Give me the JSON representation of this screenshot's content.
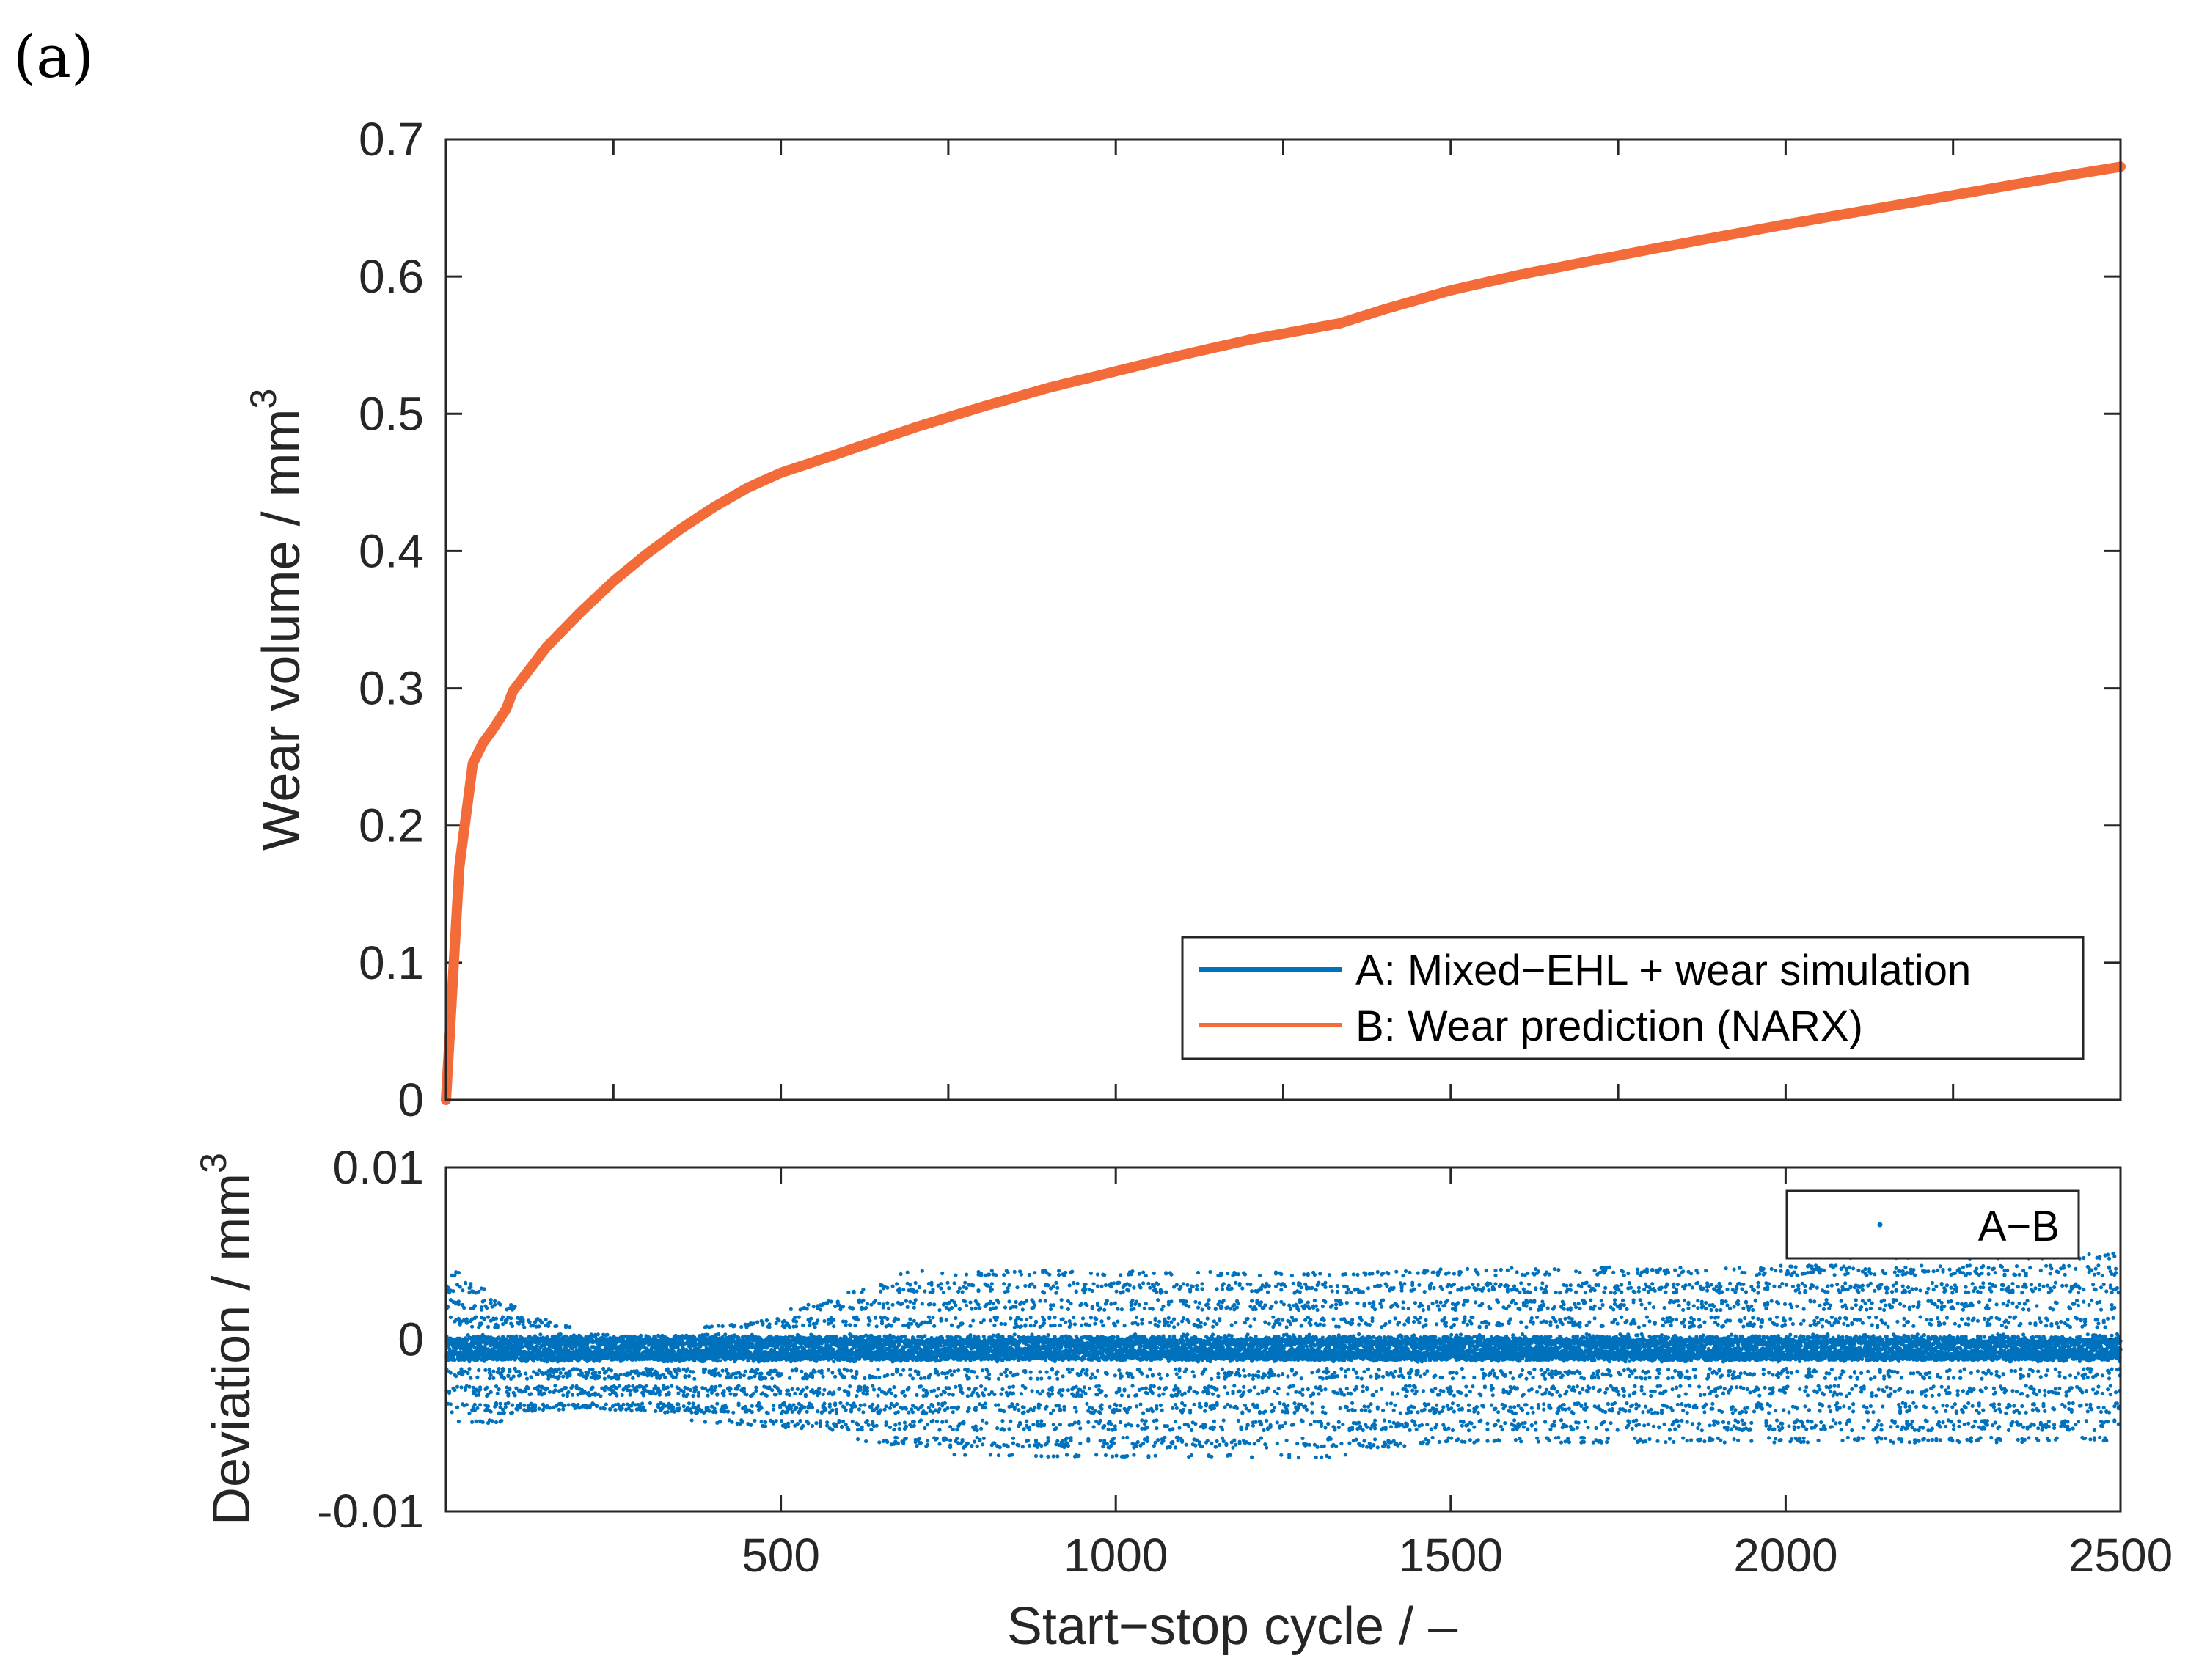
{
  "panel_label": "(a)",
  "colors": {
    "series_a": "#0072BD",
    "series_b": "#F26B38",
    "axis": "#262626"
  },
  "chart_data": [
    {
      "type": "line",
      "xlim": [
        0,
        2500
      ],
      "ylim": [
        0,
        0.7
      ],
      "yticks": [
        0,
        0.1,
        0.2,
        0.3,
        0.4,
        0.5,
        0.6,
        0.7
      ],
      "ytick_labels": [
        "0",
        "0.1",
        "0.2",
        "0.3",
        "0.4",
        "0.5",
        "0.6",
        "0.7"
      ],
      "xticks": [
        500,
        1000,
        1500,
        2000,
        2500
      ],
      "ylabel": "Wear volume / mm",
      "ylabel_superscript": "3",
      "legend": {
        "placement": "bottom-right",
        "entries": [
          "A: Mixed−EHL + wear simulation",
          "B: Wear prediction (NARX)"
        ]
      },
      "series": [
        {
          "name": "A: Mixed−EHL + wear simulation",
          "x": [
            0,
            20,
            40,
            55,
            70,
            90,
            100,
            150,
            200,
            250,
            300,
            350,
            400,
            450,
            500,
            580,
            700,
            800,
            900,
            1000,
            1100,
            1200,
            1335,
            1400,
            1500,
            1600,
            1800,
            2000,
            2200,
            2400,
            2500
          ],
          "y": [
            0,
            0.17,
            0.245,
            0.26,
            0.27,
            0.285,
            0.298,
            0.33,
            0.355,
            0.378,
            0.398,
            0.416,
            0.432,
            0.446,
            0.457,
            0.47,
            0.49,
            0.505,
            0.519,
            0.531,
            0.543,
            0.554,
            0.566,
            0.576,
            0.59,
            0.601,
            0.62,
            0.638,
            0.655,
            0.672,
            0.68
          ]
        },
        {
          "name": "B: Wear prediction (NARX)",
          "x": [
            0,
            20,
            40,
            55,
            70,
            90,
            100,
            150,
            200,
            250,
            300,
            350,
            400,
            450,
            500,
            580,
            700,
            800,
            900,
            1000,
            1100,
            1200,
            1335,
            1400,
            1500,
            1600,
            1800,
            2000,
            2200,
            2400,
            2500
          ],
          "y": [
            0,
            0.17,
            0.245,
            0.26,
            0.27,
            0.285,
            0.298,
            0.33,
            0.355,
            0.378,
            0.398,
            0.416,
            0.432,
            0.446,
            0.457,
            0.47,
            0.49,
            0.505,
            0.519,
            0.531,
            0.543,
            0.554,
            0.566,
            0.576,
            0.59,
            0.601,
            0.62,
            0.638,
            0.655,
            0.672,
            0.68
          ]
        }
      ]
    },
    {
      "type": "scatter",
      "xlim": [
        0,
        2500
      ],
      "ylim": [
        -0.01,
        0.01
      ],
      "yticks": [
        -0.01,
        0,
        0.01
      ],
      "ytick_labels": [
        "-0.01",
        "0",
        "0.01"
      ],
      "xticks": [
        500,
        1000,
        1500,
        2000,
        2500
      ],
      "xtick_labels": [
        "500",
        "1000",
        "1500",
        "2000",
        "2500"
      ],
      "xlabel": "Start−stop cycle / –",
      "ylabel": "Deviation / mm",
      "ylabel_superscript": "3",
      "legend": {
        "placement": "top-right",
        "entries": [
          "A−B"
        ]
      },
      "series": [
        {
          "name": "A−B",
          "description_of_spread": "dense band of points per cycle",
          "envelope": {
            "x": [
              0,
              50,
              100,
              200,
              350,
              450,
              580,
              700,
              1000,
              1335,
              1500,
              2000,
              2500
            ],
            "upper": [
              0.0042,
              0.0032,
              0.002,
              0.0005,
              0.0004,
              0.001,
              0.0025,
              0.004,
              0.004,
              0.0038,
              0.0042,
              0.0045,
              0.005
            ],
            "lower": [
              -0.0045,
              -0.005,
              -0.0045,
              -0.004,
              -0.0045,
              -0.005,
              -0.0055,
              -0.0065,
              -0.0068,
              -0.0068,
              -0.006,
              -0.006,
              -0.006
            ]
          }
        }
      ]
    }
  ]
}
